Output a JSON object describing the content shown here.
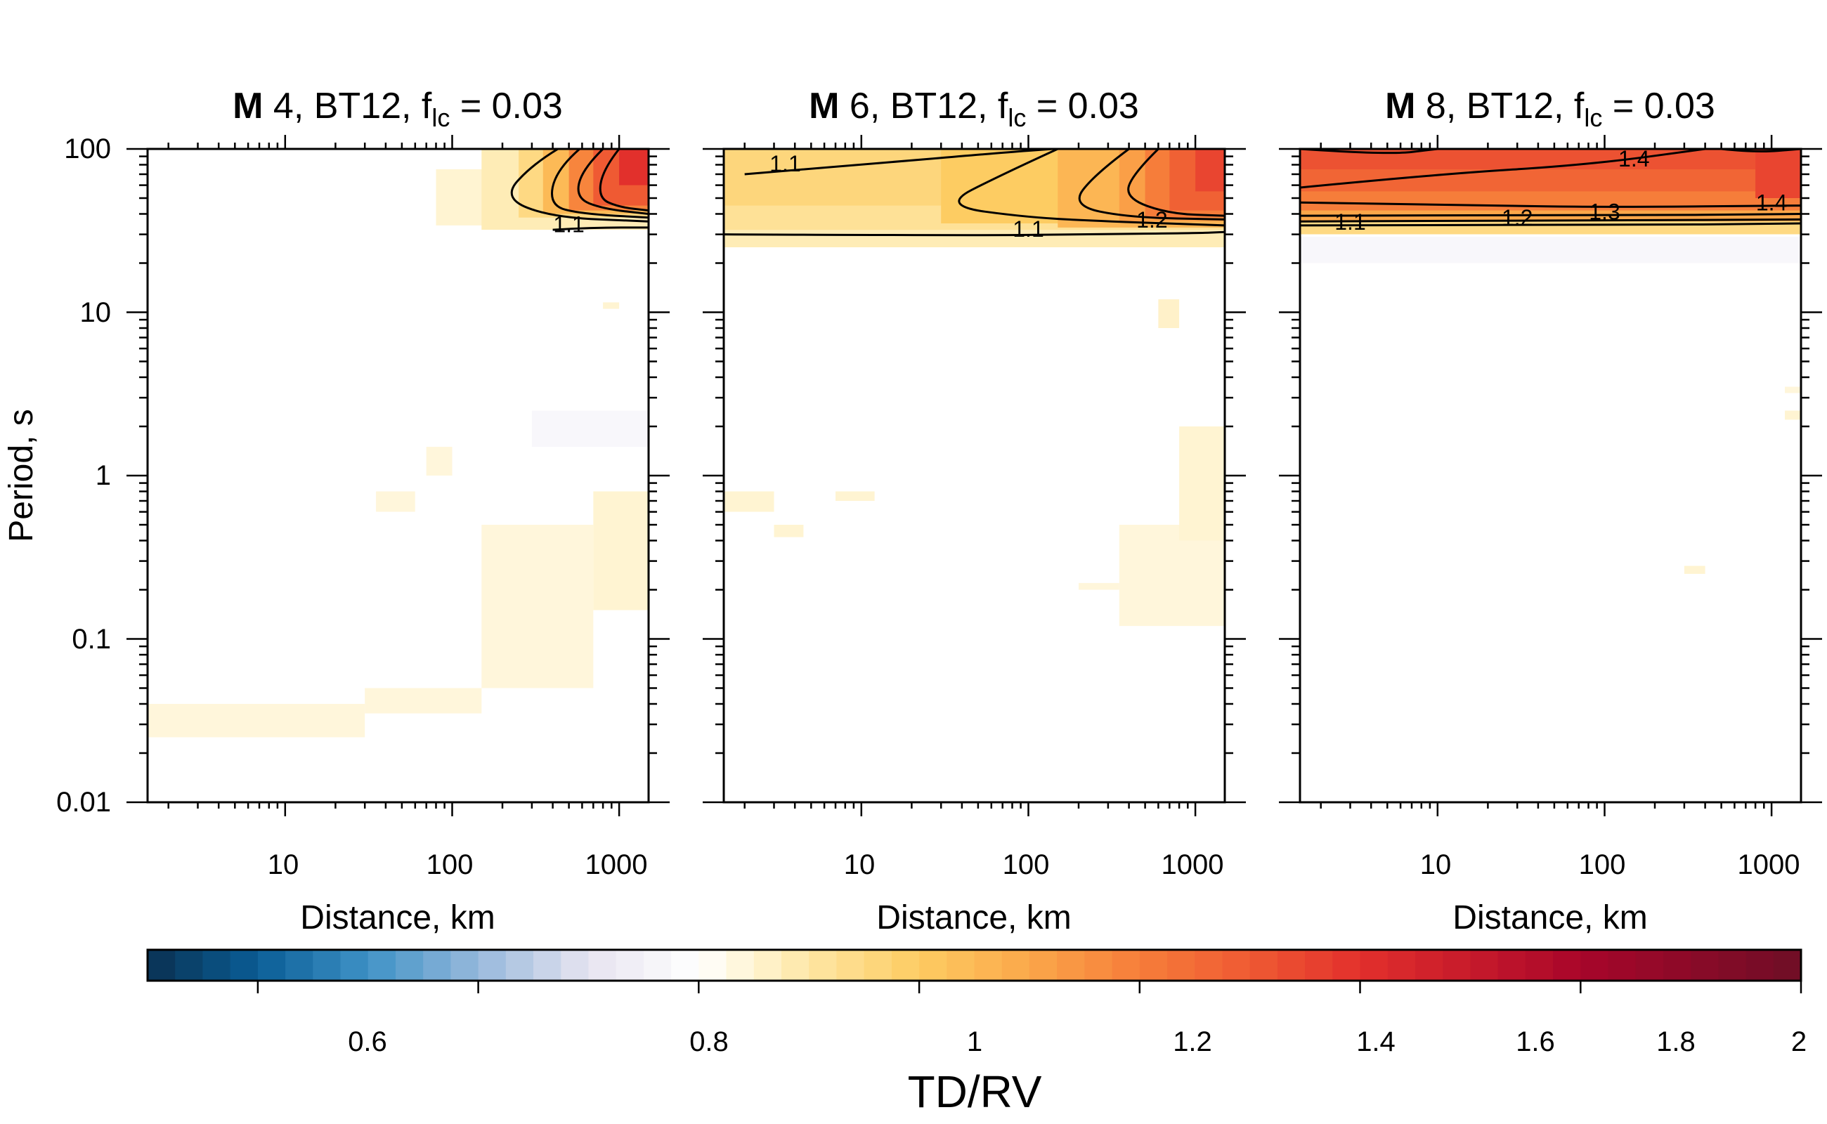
{
  "chart_data": {
    "type": "heatmap",
    "shared_ylabel": "Period, s",
    "colorbar": {
      "label": "TD/RV",
      "range": [
        0.5,
        2.0
      ],
      "ticks": [
        0.6,
        0.8,
        1,
        1.2,
        1.4,
        1.6,
        1.8,
        2
      ],
      "tick_labels": [
        "0.6",
        "0.8",
        "1",
        "1.2",
        "1.4",
        "1.6",
        "1.8",
        "2"
      ],
      "colors": [
        [
          0.5,
          "#0a3151"
        ],
        [
          0.6,
          "#0a5d96"
        ],
        [
          0.7,
          "#3f92c6"
        ],
        [
          0.8,
          "#97b9dc"
        ],
        [
          0.9,
          "#e7e4f0"
        ],
        [
          1.0,
          "#ffffff"
        ],
        [
          1.05,
          "#fff4d2"
        ],
        [
          1.1,
          "#fee6a4"
        ],
        [
          1.2,
          "#fdcc62"
        ],
        [
          1.3,
          "#fba74a"
        ],
        [
          1.4,
          "#f67d3a"
        ],
        [
          1.5,
          "#ef5a33"
        ],
        [
          1.6,
          "#e2302c"
        ],
        [
          1.7,
          "#c71a2b"
        ],
        [
          1.8,
          "#a8062a"
        ],
        [
          2.0,
          "#6e0e26"
        ]
      ]
    },
    "panels": [
      {
        "title_bold": "M",
        "title_rest": " 4, BT12, f",
        "title_sub": "lc",
        "title_tail": " = 0.03",
        "xlabel": "Distance, km",
        "xscale": "log",
        "xlim": [
          1.5,
          1500
        ],
        "yscale": "log",
        "ylim": [
          0.01,
          100
        ],
        "x_ticks": [
          10,
          100,
          1000
        ],
        "x_tick_labels": [
          "10",
          "100",
          "1000"
        ],
        "y_ticks": [
          0.01,
          0.1,
          1,
          10,
          100
        ],
        "y_tick_labels": [
          "0.01",
          "0.1",
          "1",
          "10",
          "100"
        ],
        "regions": [
          {
            "x": [
              80,
              1500
            ],
            "y": [
              34,
              75
            ],
            "value": 1.05
          },
          {
            "x": [
              150,
              1500
            ],
            "y": [
              32,
              100
            ],
            "value": 1.08
          },
          {
            "x": [
              250,
              1500
            ],
            "y": [
              38,
              100
            ],
            "value": 1.15
          },
          {
            "x": [
              350,
              1500
            ],
            "y": [
              40,
              100
            ],
            "value": 1.25
          },
          {
            "x": [
              500,
              1500
            ],
            "y": [
              42,
              100
            ],
            "value": 1.38
          },
          {
            "x": [
              700,
              1500
            ],
            "y": [
              45,
              100
            ],
            "value": 1.5
          },
          {
            "x": [
              1000,
              1500
            ],
            "y": [
              60,
              100
            ],
            "value": 1.6
          },
          {
            "x": [
              1.5,
              30
            ],
            "y": [
              0.025,
              0.04
            ],
            "value": 1.04
          },
          {
            "x": [
              30,
              150
            ],
            "y": [
              0.035,
              0.05
            ],
            "value": 1.04
          },
          {
            "x": [
              150,
              700
            ],
            "y": [
              0.05,
              0.5
            ],
            "value": 1.04
          },
          {
            "x": [
              700,
              1500
            ],
            "y": [
              0.15,
              0.8
            ],
            "value": 1.05
          },
          {
            "x": [
              300,
              1500
            ],
            "y": [
              1.5,
              2.5
            ],
            "value": 0.97
          },
          {
            "x": [
              35,
              60
            ],
            "y": [
              0.6,
              0.8
            ],
            "value": 1.04
          },
          {
            "x": [
              70,
              100
            ],
            "y": [
              1.0,
              1.5
            ],
            "value": 1.04
          },
          {
            "x": [
              800,
              1000
            ],
            "y": [
              10.5,
              11.5
            ],
            "value": 1.05
          }
        ],
        "contours": [
          {
            "level": 1.1,
            "points": [
              [
                400,
                32
              ],
              [
                700,
                33
              ],
              [
                1500,
                33
              ]
            ]
          },
          {
            "level": 1.2,
            "points": [
              [
                430,
                100
              ],
              [
                300,
                80
              ],
              [
                200,
                50
              ],
              [
                400,
                38
              ],
              [
                1500,
                36
              ]
            ]
          },
          {
            "level": 1.3,
            "points": [
              [
                580,
                100
              ],
              [
                420,
                75
              ],
              [
                380,
                45
              ],
              [
                600,
                40
              ],
              [
                1500,
                38
              ]
            ]
          },
          {
            "level": 1.4,
            "points": [
              [
                800,
                100
              ],
              [
                600,
                75
              ],
              [
                550,
                50
              ],
              [
                800,
                43
              ],
              [
                1500,
                40
              ]
            ]
          },
          {
            "level": 1.5,
            "points": [
              [
                1000,
                100
              ],
              [
                800,
                75
              ],
              [
                750,
                50
              ],
              [
                1000,
                44
              ],
              [
                1500,
                42
              ]
            ]
          }
        ],
        "contour_labels": [
          {
            "text": "1.1",
            "x": 500,
            "y": 31
          }
        ]
      },
      {
        "title_bold": "M",
        "title_rest": " 6, BT12, f",
        "title_sub": "lc",
        "title_tail": " = 0.03",
        "xlabel": "Distance, km",
        "xscale": "log",
        "xlim": [
          1.5,
          1500
        ],
        "yscale": "log",
        "ylim": [
          0.01,
          100
        ],
        "x_ticks": [
          10,
          100,
          1000
        ],
        "x_tick_labels": [
          "10",
          "100",
          "1000"
        ],
        "y_ticks": [
          0.01,
          0.1,
          1,
          10,
          100
        ],
        "y_tick_labels": [],
        "regions": [
          {
            "x": [
              1.5,
              1500
            ],
            "y": [
              25,
              100
            ],
            "value": 1.08
          },
          {
            "x": [
              1.5,
              1500
            ],
            "y": [
              32,
              100
            ],
            "value": 1.12
          },
          {
            "x": [
              1.5,
              1500
            ],
            "y": [
              45,
              100
            ],
            "value": 1.16
          },
          {
            "x": [
              30,
              1500
            ],
            "y": [
              35,
              100
            ],
            "value": 1.2
          },
          {
            "x": [
              150,
              1500
            ],
            "y": [
              33,
              100
            ],
            "value": 1.26
          },
          {
            "x": [
              350,
              1500
            ],
            "y": [
              36,
              100
            ],
            "value": 1.32
          },
          {
            "x": [
              500,
              1500
            ],
            "y": [
              38,
              100
            ],
            "value": 1.4
          },
          {
            "x": [
              700,
              1500
            ],
            "y": [
              42,
              100
            ],
            "value": 1.48
          },
          {
            "x": [
              1000,
              1500
            ],
            "y": [
              55,
              100
            ],
            "value": 1.55
          },
          {
            "x": [
              350,
              1500
            ],
            "y": [
              0.12,
              0.5
            ],
            "value": 1.04
          },
          {
            "x": [
              800,
              1500
            ],
            "y": [
              0.4,
              2
            ],
            "value": 1.05
          },
          {
            "x": [
              600,
              800
            ],
            "y": [
              8,
              12
            ],
            "value": 1.06
          },
          {
            "x": [
              1.5,
              3
            ],
            "y": [
              0.6,
              0.8
            ],
            "value": 1.05
          },
          {
            "x": [
              3,
              4.5
            ],
            "y": [
              0.42,
              0.5
            ],
            "value": 1.05
          },
          {
            "x": [
              7,
              12
            ],
            "y": [
              0.7,
              0.8
            ],
            "value": 1.05
          },
          {
            "x": [
              200,
              350
            ],
            "y": [
              0.2,
              0.22
            ],
            "value": 1.04
          }
        ],
        "contours": [
          {
            "level": 1.1,
            "points": [
              [
                2,
                70
              ],
              [
                10,
                80
              ],
              [
                70,
                95
              ],
              [
                140,
                100
              ]
            ]
          },
          {
            "level": 1.1,
            "points": [
              [
                1.5,
                30
              ],
              [
                50,
                29.5
              ],
              [
                200,
                30
              ],
              [
                1000,
                30.5
              ],
              [
                1500,
                31
              ]
            ]
          },
          {
            "level": 1.2,
            "points": [
              [
                150,
                100
              ],
              [
                70,
                70
              ],
              [
                30,
                45
              ],
              [
                100,
                38
              ],
              [
                300,
                36
              ],
              [
                1500,
                34
              ]
            ]
          },
          {
            "level": 1.3,
            "points": [
              [
                400,
                100
              ],
              [
                250,
                70
              ],
              [
                180,
                45
              ],
              [
                400,
                38
              ],
              [
                1500,
                37
              ]
            ]
          },
          {
            "level": 1.4,
            "points": [
              [
                600,
                100
              ],
              [
                420,
                70
              ],
              [
                380,
                50
              ],
              [
                700,
                40
              ],
              [
                1500,
                39
              ]
            ]
          }
        ],
        "contour_labels": [
          {
            "text": "1.1",
            "x": 3.5,
            "y": 73
          },
          {
            "text": "1.1",
            "x": 100,
            "y": 29
          },
          {
            "text": "1.2",
            "x": 550,
            "y": 33
          }
        ]
      },
      {
        "title_bold": "M",
        "title_rest": " 8, BT12, f",
        "title_sub": "lc",
        "title_tail": " = 0.03",
        "xlabel": "Distance, km",
        "xscale": "log",
        "xlim": [
          1.5,
          1500
        ],
        "yscale": "log",
        "ylim": [
          0.01,
          100
        ],
        "x_ticks": [
          10,
          100,
          1000
        ],
        "x_tick_labels": [
          "10",
          "100",
          "1000"
        ],
        "y_ticks": [
          0.01,
          0.1,
          1,
          10,
          100
        ],
        "y_tick_labels": [],
        "regions": [
          {
            "x": [
              1.5,
              1500
            ],
            "y": [
              30,
              40
            ],
            "value": 1.15
          },
          {
            "x": [
              1.5,
              1500
            ],
            "y": [
              36,
              100
            ],
            "value": 1.3
          },
          {
            "x": [
              1.5,
              1500
            ],
            "y": [
              42,
              100
            ],
            "value": 1.4
          },
          {
            "x": [
              1.5,
              1500
            ],
            "y": [
              55,
              100
            ],
            "value": 1.47
          },
          {
            "x": [
              1.5,
              1500
            ],
            "y": [
              75,
              100
            ],
            "value": 1.52
          },
          {
            "x": [
              800,
              1500
            ],
            "y": [
              50,
              100
            ],
            "value": 1.55
          },
          {
            "x": [
              1.5,
              1500
            ],
            "y": [
              20,
              29
            ],
            "value": 0.97
          },
          {
            "x": [
              300,
              400
            ],
            "y": [
              0.25,
              0.28
            ],
            "value": 1.05
          },
          {
            "x": [
              1200,
              1500
            ],
            "y": [
              2.2,
              2.5
            ],
            "value": 1.05
          },
          {
            "x": [
              1200,
              1500
            ],
            "y": [
              3.2,
              3.5
            ],
            "value": 1.04
          }
        ],
        "contours": [
          {
            "level": 1.1,
            "points": [
              [
                1.5,
                34
              ],
              [
                100,
                34
              ],
              [
                1500,
                35
              ]
            ]
          },
          {
            "level": 1.2,
            "points": [
              [
                1.5,
                36
              ],
              [
                100,
                36.5
              ],
              [
                1500,
                37
              ]
            ]
          },
          {
            "level": 1.3,
            "points": [
              [
                1.5,
                39
              ],
              [
                100,
                39
              ],
              [
                1500,
                40
              ]
            ]
          },
          {
            "level": 1.4,
            "points": [
              [
                1.5,
                47
              ],
              [
                20,
                45
              ],
              [
                100,
                44
              ],
              [
                1500,
                45
              ]
            ]
          },
          {
            "level": 1.4,
            "points": [
              [
                1.5,
                58
              ],
              [
                10,
                70
              ],
              [
                80,
                80
              ],
              [
                400,
                100
              ]
            ]
          },
          {
            "level": 1.5,
            "points": [
              [
                1.5,
                100
              ],
              [
                5,
                92
              ],
              [
                10,
                100
              ]
            ]
          },
          {
            "level": 1.5,
            "points": [
              [
                500,
                100
              ],
              [
                800,
                95
              ],
              [
                1500,
                100
              ]
            ]
          }
        ],
        "contour_labels": [
          {
            "text": "1.1",
            "x": 3,
            "y": 32
          },
          {
            "text": "1.2",
            "x": 30,
            "y": 34
          },
          {
            "text": "1.3",
            "x": 100,
            "y": 37
          },
          {
            "text": "1.4",
            "x": 1000,
            "y": 42
          },
          {
            "text": "1.4",
            "x": 150,
            "y": 78
          }
        ]
      }
    ]
  }
}
